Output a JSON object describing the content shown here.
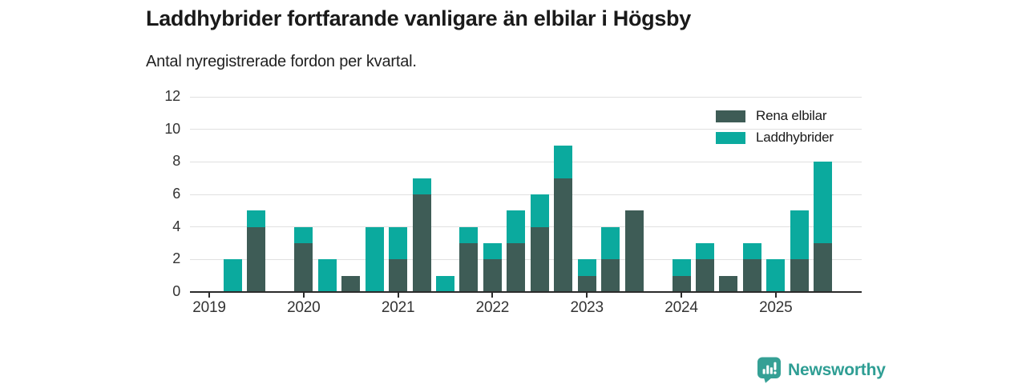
{
  "header": {
    "title": "Laddhybrider fortfarande vanligare än elbilar i Högsby",
    "subtitle": "Antal nyregistrerade fordon per kvartal."
  },
  "colors": {
    "rena_elbilar": "#3e5c56",
    "laddhybrider": "#0baa9e",
    "grid": "#e0e0e0",
    "axis": "#2b2b2b",
    "brand": "#35a095"
  },
  "legend": [
    {
      "label": "Rena elbilar",
      "color": "#3e5c56"
    },
    {
      "label": "Laddhybrider",
      "color": "#0baa9e"
    }
  ],
  "chart_data": {
    "type": "bar",
    "stacked": true,
    "title": "Laddhybrider fortfarande vanligare än elbilar i Högsby",
    "subtitle": "Antal nyregistrerade fordon per kvartal.",
    "xlabel": "",
    "ylabel": "",
    "ylim": [
      0,
      12
    ],
    "yticks": [
      0,
      2,
      4,
      6,
      8,
      10,
      12
    ],
    "grid": true,
    "legend_position": "top-right",
    "categories": [
      "2019 Q1",
      "2019 Q2",
      "2019 Q3",
      "2019 Q4",
      "2020 Q1",
      "2020 Q2",
      "2020 Q3",
      "2020 Q4",
      "2021 Q1",
      "2021 Q2",
      "2021 Q3",
      "2021 Q4",
      "2022 Q1",
      "2022 Q2",
      "2022 Q3",
      "2022 Q4",
      "2023 Q1",
      "2023 Q2",
      "2023 Q3",
      "2023 Q4",
      "2024 Q1",
      "2024 Q2",
      "2024 Q3",
      "2024 Q4",
      "2025 Q1",
      "2025 Q2",
      "2025 Q3"
    ],
    "year_tick_labels": [
      "2019",
      "2020",
      "2021",
      "2022",
      "2023",
      "2024",
      "2025"
    ],
    "series": [
      {
        "name": "Rena elbilar",
        "values": [
          0,
          0,
          4,
          0,
          3,
          0,
          1,
          0,
          2,
          6,
          0,
          3,
          2,
          3,
          4,
          7,
          1,
          2,
          5,
          0,
          1,
          2,
          1,
          2,
          0,
          2,
          3
        ]
      },
      {
        "name": "Laddhybrider",
        "values": [
          0,
          2,
          1,
          0,
          1,
          2,
          0,
          4,
          2,
          1,
          1,
          1,
          1,
          2,
          2,
          2,
          1,
          2,
          0,
          0,
          1,
          1,
          0,
          1,
          2,
          3,
          5
        ]
      }
    ]
  },
  "footer": {
    "brand": "Newsworthy"
  }
}
